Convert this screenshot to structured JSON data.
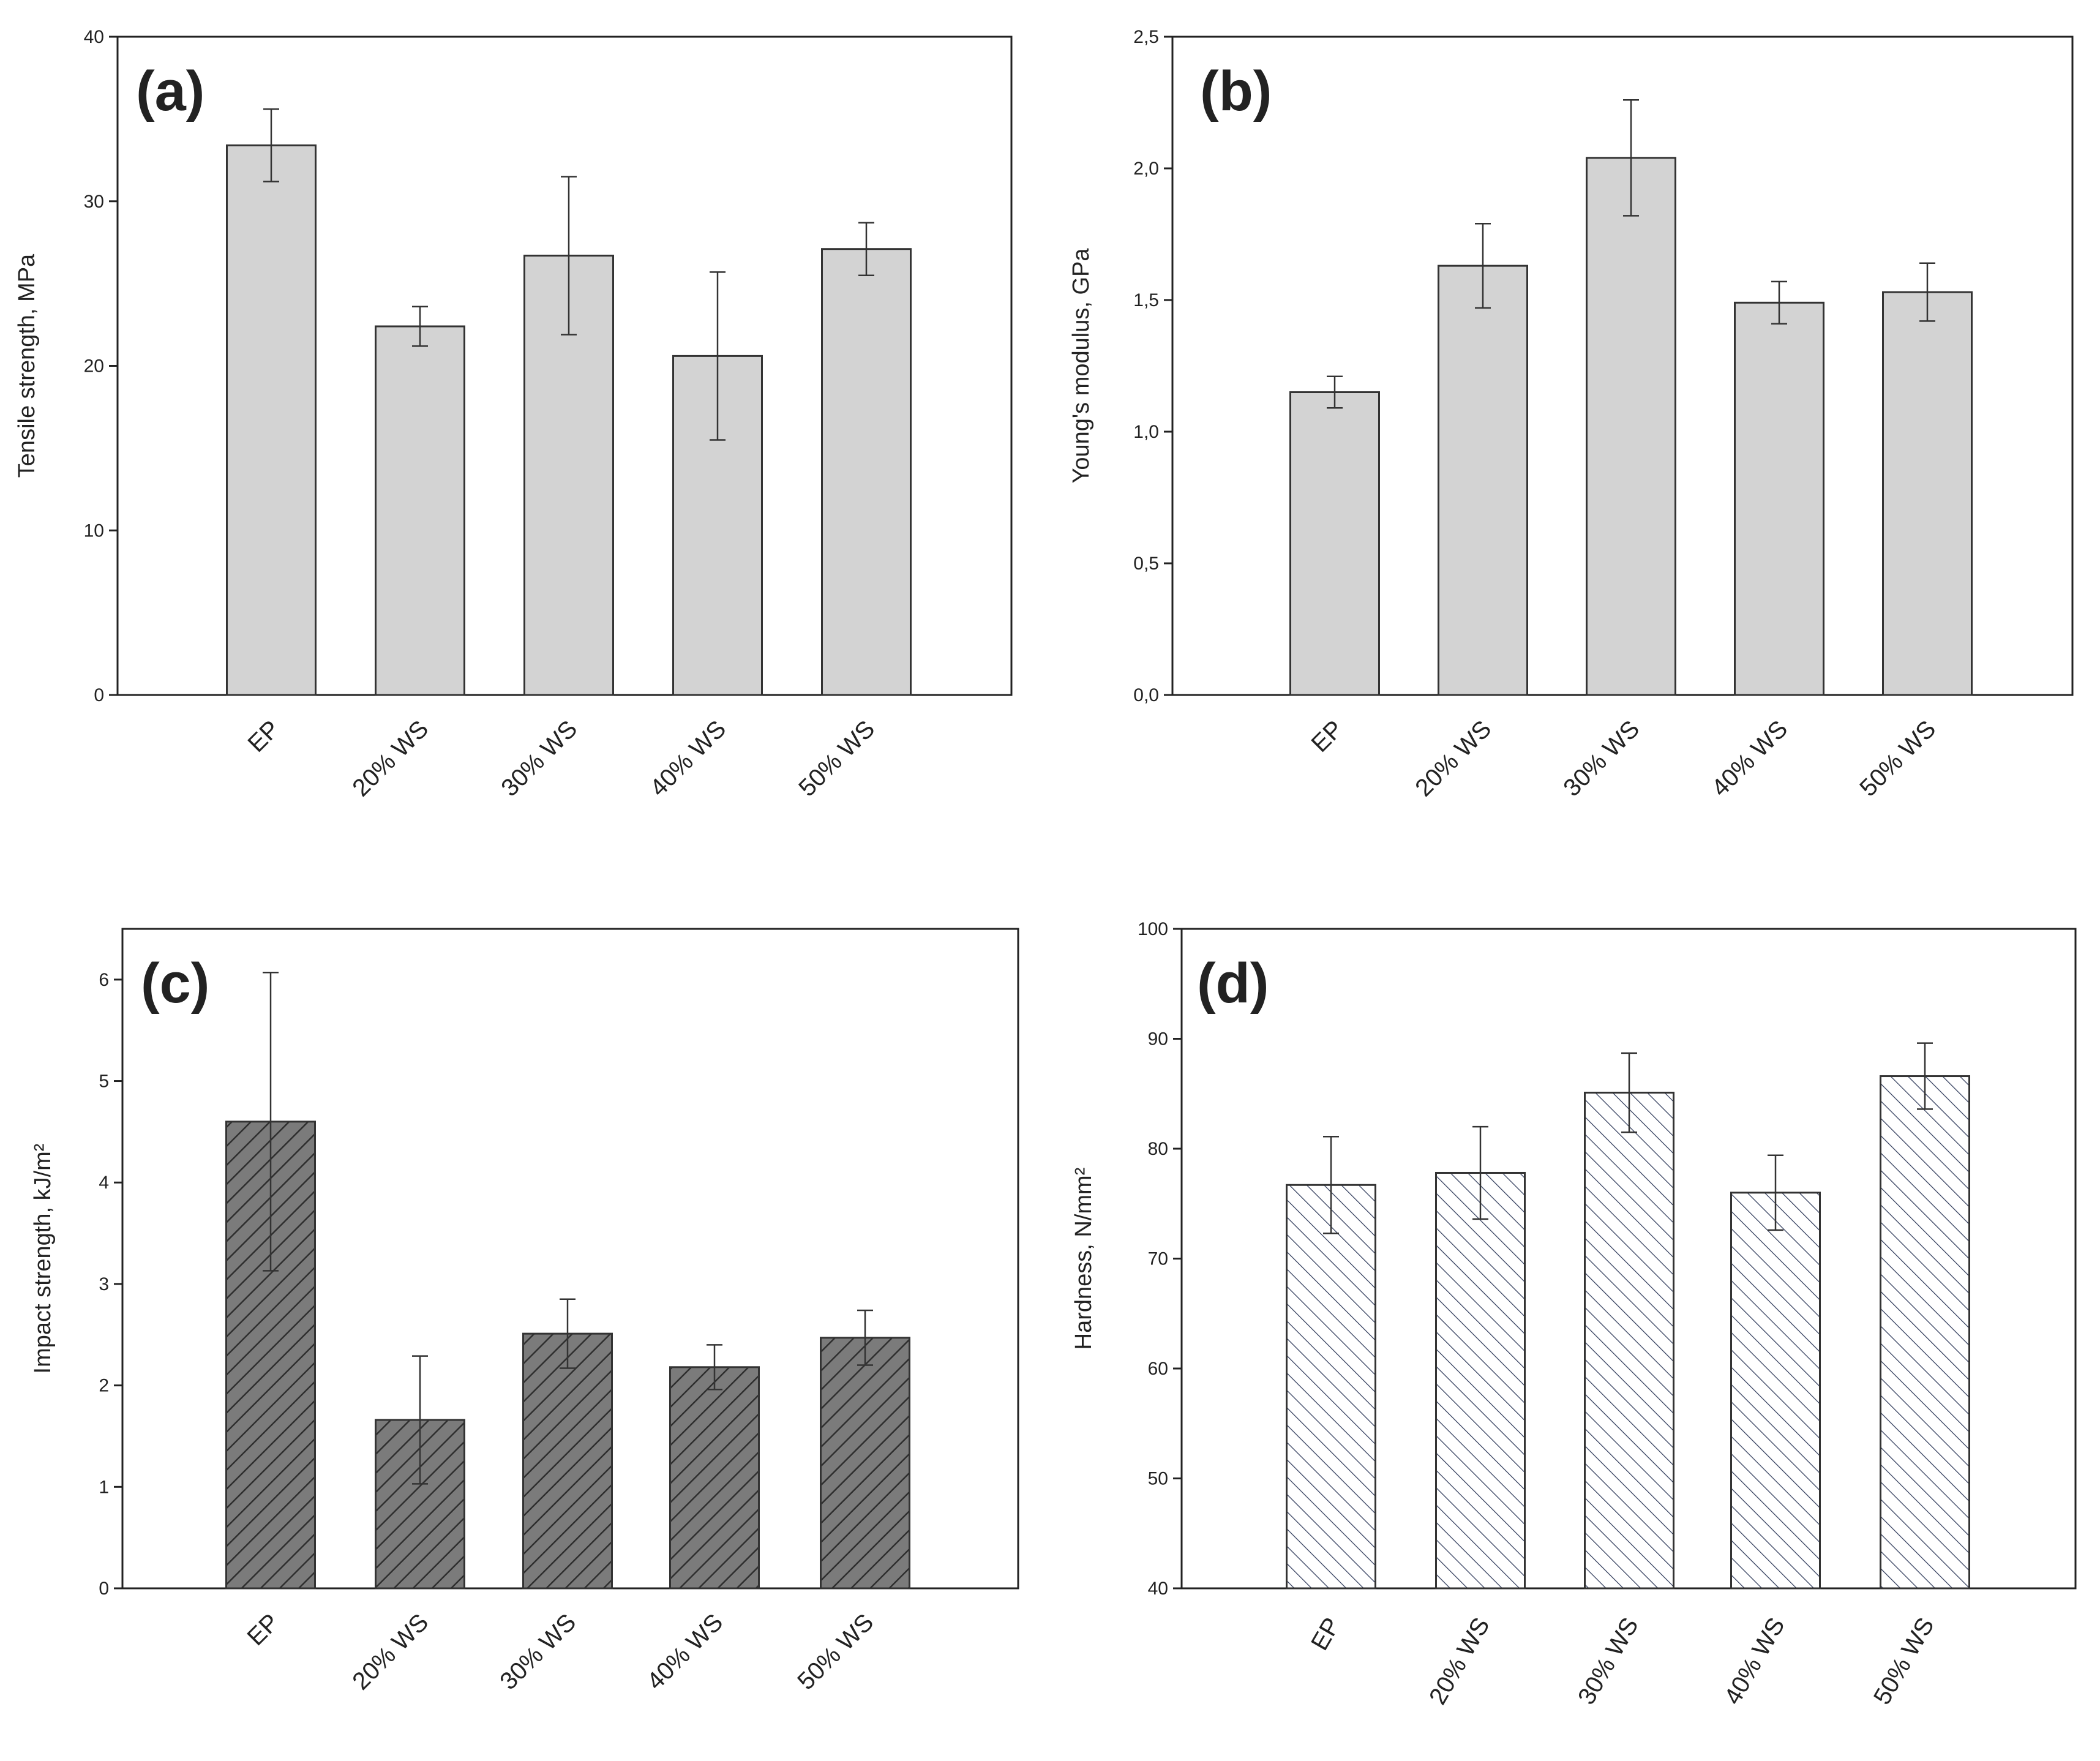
{
  "figure": {
    "panels": [
      "(a)",
      "(b)",
      "(c)",
      "(d)"
    ]
  },
  "chart_data": [
    {
      "type": "bar",
      "panel": "(a)",
      "ylabel": "Tensile strength, MPa",
      "xlabel": "",
      "categories": [
        "EP",
        "20% WS",
        "30% WS",
        "40% WS",
        "50% WS"
      ],
      "values": [
        33.4,
        22.4,
        26.7,
        20.6,
        27.1
      ],
      "errors": [
        2.2,
        1.2,
        4.8,
        5.1,
        1.6
      ],
      "ylim": [
        0,
        40
      ],
      "yticks": [
        0,
        10,
        20,
        30,
        40
      ],
      "ytick_labels": [
        "0",
        "10",
        "20",
        "30",
        "40"
      ],
      "fill": "#d3d3d3",
      "hatch": "none"
    },
    {
      "type": "bar",
      "panel": "(b)",
      "ylabel": "Young's modulus, GPa",
      "xlabel": "",
      "categories": [
        "EP",
        "20% WS",
        "30% WS",
        "40% WS",
        "50% WS"
      ],
      "values": [
        1.15,
        1.63,
        2.04,
        1.49,
        1.53
      ],
      "errors": [
        0.06,
        0.16,
        0.22,
        0.08,
        0.11
      ],
      "ylim": [
        0,
        2.5
      ],
      "yticks": [
        0,
        0.5,
        1.0,
        1.5,
        2.0,
        2.5
      ],
      "ytick_labels": [
        "0,0",
        "0,5",
        "1,0",
        "1,5",
        "2,0",
        "2,5"
      ],
      "fill": "#d3d3d3",
      "hatch": "none"
    },
    {
      "type": "bar",
      "panel": "(c)",
      "ylabel": "Impact strength, kJ/m²",
      "xlabel": "",
      "categories": [
        "EP",
        "20% WS",
        "30% WS",
        "40% WS",
        "50% WS"
      ],
      "values": [
        4.6,
        1.66,
        2.51,
        2.18,
        2.47
      ],
      "errors": [
        1.47,
        0.63,
        0.34,
        0.22,
        0.27
      ],
      "ylim": [
        0,
        6.5
      ],
      "yticks": [
        0,
        1,
        2,
        3,
        4,
        5,
        6
      ],
      "ytick_labels": [
        "0",
        "1",
        "2",
        "3",
        "4",
        "5",
        "6"
      ],
      "fill": "#7b7b7b",
      "hatch": "dense-diagonal"
    },
    {
      "type": "bar",
      "panel": "(d)",
      "ylabel": "Hardness, N/mm²",
      "xlabel": "",
      "categories": [
        "EP",
        "20% WS",
        "30% WS",
        "40% WS",
        "50% WS"
      ],
      "values": [
        76.7,
        77.8,
        85.1,
        76.0,
        86.6
      ],
      "errors": [
        4.4,
        4.2,
        3.6,
        3.4,
        3.0
      ],
      "ylim": [
        40,
        100
      ],
      "yticks": [
        40,
        50,
        60,
        70,
        80,
        90,
        100
      ],
      "ytick_labels": [
        "40",
        "50",
        "60",
        "70",
        "80",
        "90",
        "100"
      ],
      "fill": "#ffffff",
      "hatch": "light-diagonal"
    }
  ]
}
